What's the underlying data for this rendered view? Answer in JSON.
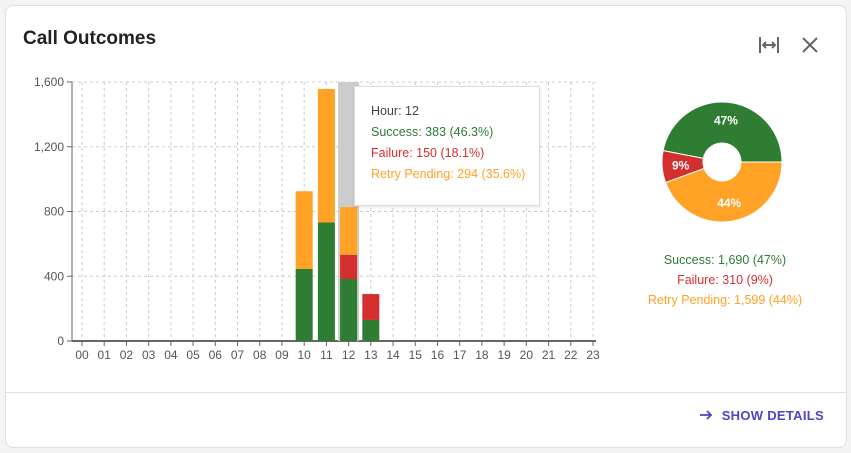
{
  "card": {
    "title": "Call Outcomes",
    "show_details": "SHOW DETAILS"
  },
  "colors": {
    "success": "#2e7d32",
    "failure": "#d32f2f",
    "retry": "#ffa226",
    "highlight": "#cccccc"
  },
  "tooltip": {
    "hour": "Hour: 12",
    "success": "Success: 383 (46.3%)",
    "failure": "Failure: 150 (18.1%)",
    "retry": "Retry Pending: 294 (35.6%)"
  },
  "legend": {
    "success": "Success: 1,690 (47%)",
    "failure": "Failure: 310 (9%)",
    "retry": "Retry Pending: 1,599 (44%)"
  },
  "chart_data": [
    {
      "type": "bar",
      "stacked": true,
      "categories": [
        "00",
        "01",
        "02",
        "03",
        "04",
        "05",
        "06",
        "07",
        "08",
        "09",
        "10",
        "11",
        "12",
        "13",
        "14",
        "15",
        "16",
        "17",
        "18",
        "19",
        "20",
        "21",
        "22",
        "23"
      ],
      "series": [
        {
          "name": "Success",
          "color": "#2e7d32",
          "values": [
            0,
            0,
            0,
            0,
            0,
            0,
            0,
            0,
            0,
            0,
            445,
            732,
            383,
            130,
            0,
            0,
            0,
            0,
            0,
            0,
            0,
            0,
            0,
            0
          ]
        },
        {
          "name": "Failure",
          "color": "#d32f2f",
          "values": [
            0,
            0,
            0,
            0,
            0,
            0,
            0,
            0,
            0,
            0,
            0,
            0,
            150,
            160,
            0,
            0,
            0,
            0,
            0,
            0,
            0,
            0,
            0,
            0
          ]
        },
        {
          "name": "Retry Pending",
          "color": "#ffa226",
          "values": [
            0,
            0,
            0,
            0,
            0,
            0,
            0,
            0,
            0,
            0,
            480,
            825,
            294,
            0,
            0,
            0,
            0,
            0,
            0,
            0,
            0,
            0,
            0,
            0
          ]
        }
      ],
      "ylim": [
        0,
        1600
      ],
      "yticks": [
        0,
        400,
        800,
        1200,
        1600
      ],
      "ytick_labels": [
        "0",
        "400",
        "800",
        "1,200",
        "1,600"
      ],
      "grid": true,
      "highlighted_category": "12"
    },
    {
      "type": "pie",
      "donut": true,
      "labels": [
        "Success",
        "Failure",
        "Retry Pending"
      ],
      "values": [
        1690,
        310,
        1599
      ],
      "percent_labels": [
        "47%",
        "9%",
        "44%"
      ],
      "colors": [
        "#2e7d32",
        "#d32f2f",
        "#ffa226"
      ]
    }
  ]
}
